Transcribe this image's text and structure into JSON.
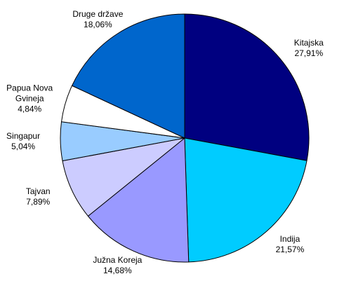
{
  "chart_data": {
    "type": "pie",
    "categories": [
      "Kitajska",
      "Indija",
      "Južna Koreja",
      "Tajvan",
      "Singapur",
      "Papua Nova Gvineja",
      "Druge države"
    ],
    "values": [
      27.91,
      21.57,
      14.68,
      7.89,
      5.04,
      4.84,
      18.06
    ],
    "value_labels": [
      "27,91%",
      "21,57%",
      "14,68%",
      "7,89%",
      "5,04%",
      "4,84%",
      "18,06%"
    ],
    "colors": [
      "#000080",
      "#00ccff",
      "#9999ff",
      "#ccccff",
      "#99ccff",
      "#ffffff",
      "#0066cc"
    ]
  }
}
